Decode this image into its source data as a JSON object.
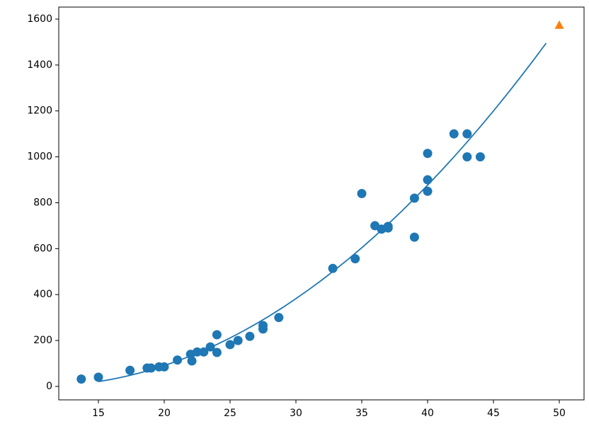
{
  "chart_data": {
    "type": "scatter",
    "xlim": [
      11.99,
      51.88
    ],
    "ylim": [
      -58.6,
      1652.4
    ],
    "xticks": [
      15,
      20,
      25,
      30,
      35,
      40,
      45,
      50
    ],
    "yticks": [
      0,
      200,
      400,
      600,
      800,
      1000,
      1200,
      1400,
      1600
    ],
    "series": [
      {
        "type": "scatter",
        "marker": "circle",
        "color": "#1f77b4",
        "x": [
          13.7,
          15.0,
          17.4,
          18.7,
          19.0,
          19.6,
          20.0,
          21.0,
          22.0,
          22.1,
          22.5,
          23.0,
          23.5,
          24.0,
          24.0,
          25.0,
          25.6,
          26.5,
          27.5,
          27.5,
          28.7,
          32.8,
          34.5,
          35.0,
          36.0,
          36.5,
          37.0,
          37.0,
          39.0,
          39.0,
          40.0,
          40.0,
          40.0,
          42.0,
          43.0,
          43.0,
          44.0
        ],
        "values": [
          32,
          40,
          70,
          80,
          80,
          85,
          85,
          115,
          140,
          111,
          150,
          150,
          172,
          225,
          148,
          182,
          200,
          218,
          265,
          250,
          300,
          514,
          556,
          840,
          700,
          685,
          697,
          690,
          820,
          650,
          1015,
          900,
          850,
          1100,
          1100,
          1000,
          1000
        ]
      },
      {
        "type": "line",
        "color": "#1f77b4",
        "x": [
          15,
          16,
          17,
          18,
          19,
          20,
          21,
          22,
          23,
          24,
          25,
          26,
          27,
          28,
          29,
          30,
          31,
          32,
          33,
          34,
          35,
          36,
          37,
          38,
          39,
          40,
          41,
          42,
          43,
          44,
          45,
          46,
          47,
          48,
          49
        ],
        "values": [
          20.9,
          30.8,
          42.7,
          56.6,
          72.6,
          90.6,
          110.7,
          132.7,
          156.8,
          182.9,
          211.0,
          241.2,
          273.4,
          307.6,
          343.9,
          382.2,
          422.5,
          464.8,
          509.2,
          555.6,
          604.0,
          654.4,
          707.0,
          761.5,
          818.1,
          876.6,
          937.3,
          999.8,
          1064.5,
          1131.2,
          1199.8,
          1270.6,
          1343.4,
          1418.2,
          1495.1
        ]
      },
      {
        "type": "scatter",
        "marker": "triangle",
        "color": "#ff7f0e",
        "x": [
          50
        ],
        "values": [
          1573
        ]
      }
    ]
  }
}
